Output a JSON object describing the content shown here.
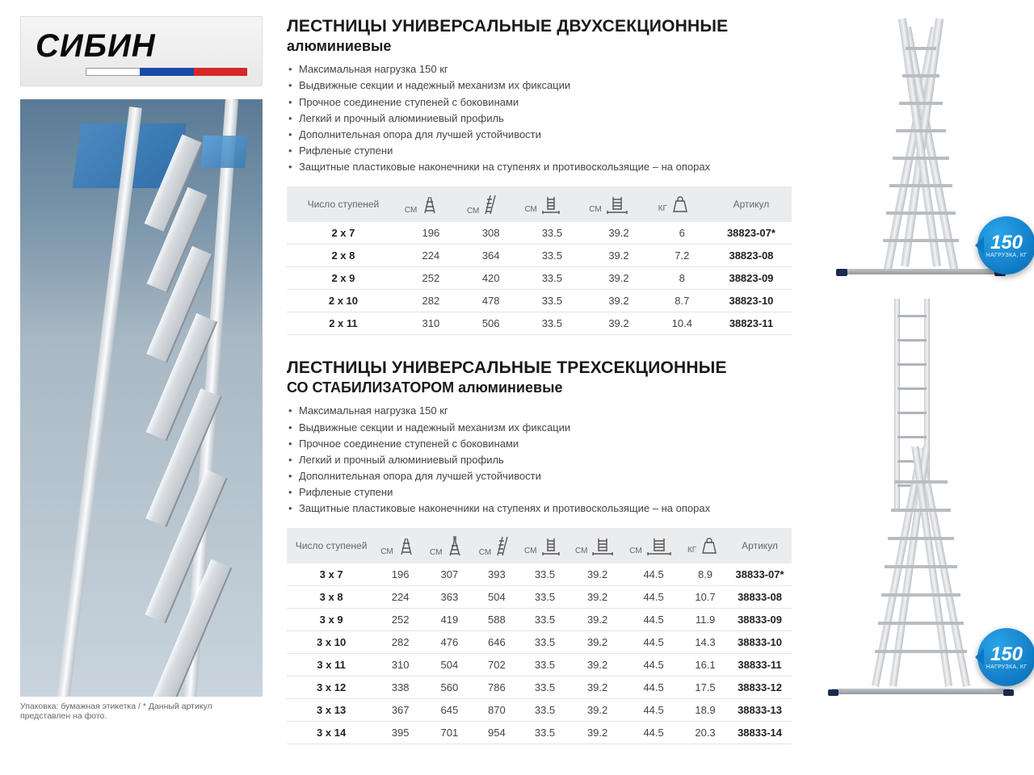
{
  "brand": "СИБИН",
  "flag_colors": [
    "#ffffff",
    "#1a4aa8",
    "#d62828"
  ],
  "footnote": "Упаковка: бумажная этикетка   /  * Данный артикул представлен на фото.",
  "badge": {
    "value": "150",
    "label": "НАГРУЗКА, КГ"
  },
  "sections": [
    {
      "title": "ЛЕСТНИЦЫ УНИВЕРСАЛЬНЫЕ ДВУХСЕКЦИОННЫЕ",
      "subtitle": "алюминиевые",
      "bullets": [
        "Максимальная нагрузка 150 кг",
        "Выдвижные секции и надежный механизм их фиксации",
        "Прочное соединение ступеней с боковинами",
        "Легкий и прочный алюминиевый профиль",
        "Дополнительная опора для лучшей устойчивости",
        "Рифленые ступени",
        "Защитные пластиковые наконечники на ступенях и противоскользящие – на опорах"
      ],
      "table": {
        "headers": [
          {
            "type": "text",
            "label": "Число ступеней"
          },
          {
            "type": "icon",
            "unit": "СМ",
            "icon": "a-ladder"
          },
          {
            "type": "icon",
            "unit": "СМ",
            "icon": "straight-ladder"
          },
          {
            "type": "icon",
            "unit": "СМ",
            "icon": "width-narrow"
          },
          {
            "type": "icon",
            "unit": "СМ",
            "icon": "width-wide"
          },
          {
            "type": "icon",
            "unit": "КГ",
            "icon": "weight"
          },
          {
            "type": "text",
            "label": "Артикул"
          }
        ],
        "rows": [
          [
            "2 x 7",
            "196",
            "308",
            "33.5",
            "39.2",
            "6",
            "38823-07*"
          ],
          [
            "2 x 8",
            "224",
            "364",
            "33.5",
            "39.2",
            "7.2",
            "38823-08"
          ],
          [
            "2 x 9",
            "252",
            "420",
            "33.5",
            "39.2",
            "8",
            "38823-09"
          ],
          [
            "2 x 10",
            "282",
            "478",
            "33.5",
            "39.2",
            "8.7",
            "38823-10"
          ],
          [
            "2 x 11",
            "310",
            "506",
            "33.5",
            "39.2",
            "10.4",
            "38823-11"
          ]
        ]
      }
    },
    {
      "title": "ЛЕСТНИЦЫ УНИВЕРСАЛЬНЫЕ ТРЕХСЕКЦИОННЫЕ",
      "subtitle": "СО СТАБИЛИЗАТОРОМ алюминиевые",
      "bullets": [
        "Максимальная нагрузка 150 кг",
        "Выдвижные секции и надежный механизм их фиксации",
        "Прочное соединение ступеней с боковинами",
        "Легкий и прочный алюминиевый профиль",
        "Дополнительная опора для лучшей устойчивости",
        "Рифленые ступени",
        "Защитные пластиковые наконечники на ступенях и противоскользящие – на опорах"
      ],
      "table": {
        "headers": [
          {
            "type": "text",
            "label": "Число ступеней"
          },
          {
            "type": "icon",
            "unit": "СМ",
            "icon": "a-ladder"
          },
          {
            "type": "icon",
            "unit": "СМ",
            "icon": "a-ladder-ext"
          },
          {
            "type": "icon",
            "unit": "СМ",
            "icon": "straight-ladder"
          },
          {
            "type": "icon",
            "unit": "СМ",
            "icon": "width-narrow"
          },
          {
            "type": "icon",
            "unit": "СМ",
            "icon": "width-wide"
          },
          {
            "type": "icon",
            "unit": "СМ",
            "icon": "width-widest"
          },
          {
            "type": "icon",
            "unit": "КГ",
            "icon": "weight"
          },
          {
            "type": "text",
            "label": "Артикул"
          }
        ],
        "rows": [
          [
            "3 x 7",
            "196",
            "307",
            "393",
            "33.5",
            "39.2",
            "44.5",
            "8.9",
            "38833-07*"
          ],
          [
            "3 x 8",
            "224",
            "363",
            "504",
            "33.5",
            "39.2",
            "44.5",
            "10.7",
            "38833-08"
          ],
          [
            "3 x 9",
            "252",
            "419",
            "588",
            "33.5",
            "39.2",
            "44.5",
            "11.9",
            "38833-09"
          ],
          [
            "3 x 10",
            "282",
            "476",
            "646",
            "33.5",
            "39.2",
            "44.5",
            "14.3",
            "38833-10"
          ],
          [
            "3 x 11",
            "310",
            "504",
            "702",
            "33.5",
            "39.2",
            "44.5",
            "16.1",
            "38833-11"
          ],
          [
            "3 x 12",
            "338",
            "560",
            "786",
            "33.5",
            "39.2",
            "44.5",
            "17.5",
            "38833-12"
          ],
          [
            "3 x 13",
            "367",
            "645",
            "870",
            "33.5",
            "39.2",
            "44.5",
            "18.9",
            "38833-13"
          ],
          [
            "3 x 14",
            "395",
            "701",
            "954",
            "33.5",
            "39.2",
            "44.5",
            "20.3",
            "38833-14"
          ]
        ]
      }
    }
  ],
  "colors": {
    "header_bg": "#ebecee",
    "row_border": "#e3e4e6",
    "badge_gradient": [
      "#2aa5e8",
      "#0568b4"
    ]
  }
}
